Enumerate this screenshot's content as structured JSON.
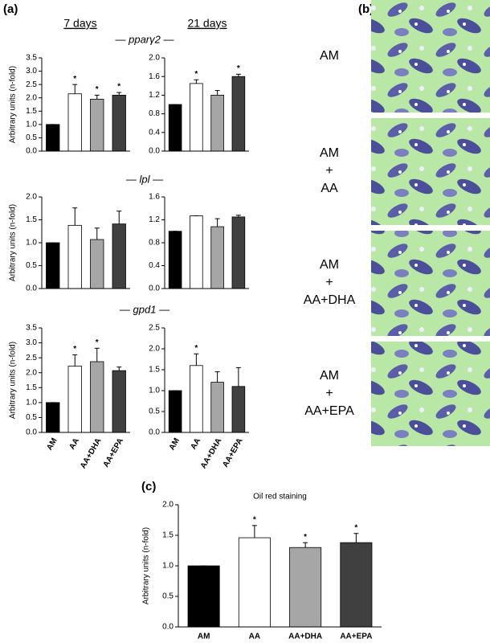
{
  "panels": [
    "(a)",
    "(b)",
    "(c)"
  ],
  "columns": [
    "7 days",
    "21 days"
  ],
  "genes": [
    "— pparγ2 —",
    "— lpl —",
    "— gpd1 —"
  ],
  "images": [
    {
      "lines": [
        "AM"
      ]
    },
    {
      "lines": [
        "AM",
        "+",
        "AA"
      ]
    },
    {
      "lines": [
        "AM",
        "+",
        "AA+DHA"
      ]
    },
    {
      "lines": [
        "AM",
        "+",
        "AA+EPA"
      ]
    }
  ],
  "chart_data": [
    {
      "type": "bar",
      "ylabel": "Arbitrary units (n-fold)",
      "categories": [
        null,
        null,
        null,
        null
      ],
      "values": [
        1.0,
        2.15,
        1.95,
        2.1
      ],
      "errors": [
        0,
        0.35,
        0.15,
        0.1
      ],
      "significance": [
        null,
        "*",
        "*",
        "*"
      ],
      "colors": [
        "#000000",
        "#ffffff",
        "#a6a6a6",
        "#404040"
      ],
      "ylim": [
        0,
        3.5
      ],
      "yticks": [
        {
          "value": 0,
          "label": "0.0"
        },
        {
          "value": 0.5,
          "label": "0.5"
        },
        {
          "value": 1,
          "label": "1.0"
        },
        {
          "value": 1.5,
          "label": "1.5"
        },
        {
          "value": 2,
          "label": "2.0"
        },
        {
          "value": 2.5,
          "label": "2.5"
        },
        {
          "value": 3,
          "label": "3.0"
        },
        {
          "value": 3.5,
          "label": "3.5"
        }
      ]
    },
    {
      "type": "bar",
      "categories": [
        null,
        null,
        null,
        null
      ],
      "values": [
        1.0,
        1.45,
        1.2,
        1.6
      ],
      "errors": [
        0,
        0.08,
        0.1,
        0.05
      ],
      "significance": [
        null,
        "*",
        null,
        "*"
      ],
      "colors": [
        "#000000",
        "#ffffff",
        "#a6a6a6",
        "#404040"
      ],
      "ylim": [
        0,
        2.0
      ],
      "yticks": [
        {
          "value": 0,
          "label": "0.0"
        },
        0.4,
        0.8,
        1.2,
        1.6,
        {
          "value": 2,
          "label": "2.0"
        }
      ]
    },
    {
      "type": "bar",
      "ylabel": "Arbitrary units (n-fold)",
      "categories": [
        null,
        null,
        null,
        null
      ],
      "values": [
        1.0,
        1.38,
        1.07,
        1.41
      ],
      "errors": [
        0,
        0.38,
        0.25,
        0.28
      ],
      "significance": [
        null,
        null,
        null,
        null
      ],
      "colors": [
        "#000000",
        "#ffffff",
        "#a6a6a6",
        "#404040"
      ],
      "ylim": [
        0,
        2.0
      ],
      "yticks": [
        {
          "value": 0,
          "label": "0.0"
        },
        0.5,
        {
          "value": 1,
          "label": "1.0"
        },
        1.5,
        {
          "value": 2,
          "label": "2.0"
        }
      ]
    },
    {
      "type": "bar",
      "categories": [
        null,
        null,
        null,
        null
      ],
      "values": [
        1.0,
        1.27,
        1.08,
        1.25
      ],
      "errors": [
        0,
        0,
        0.14,
        0.03
      ],
      "significance": [
        null,
        null,
        null,
        null
      ],
      "colors": [
        "#000000",
        "#ffffff",
        "#a6a6a6",
        "#404040"
      ],
      "ylim": [
        0,
        1.6
      ],
      "yticks": [
        {
          "value": 0,
          "label": "0.0"
        },
        0.4,
        0.8,
        1.2,
        1.6
      ]
    },
    {
      "type": "bar",
      "ylabel": "Arbitrary units (n-fold)",
      "categories": [
        "AM",
        "AA",
        "AA+DHA",
        "AA+EPA"
      ],
      "values": [
        1.0,
        2.22,
        2.37,
        2.07
      ],
      "errors": [
        0,
        0.38,
        0.45,
        0.12
      ],
      "significance": [
        null,
        "*",
        "*",
        null
      ],
      "colors": [
        "#000000",
        "#ffffff",
        "#a6a6a6",
        "#404040"
      ],
      "ylim": [
        0,
        3.5
      ],
      "yticks": [
        {
          "value": 0,
          "label": "0.0"
        },
        0.5,
        {
          "value": 1,
          "label": "1.0"
        },
        1.5,
        {
          "value": 2,
          "label": "2.0"
        },
        2.5,
        {
          "value": 3,
          "label": "3.0"
        },
        3.5
      ]
    },
    {
      "type": "bar",
      "categories": [
        "AM",
        "AA",
        "AA+DHA",
        "AA+EPA"
      ],
      "values": [
        1.0,
        1.6,
        1.2,
        1.1
      ],
      "errors": [
        0,
        0.28,
        0.25,
        0.45
      ],
      "significance": [
        null,
        "*",
        null,
        null
      ],
      "colors": [
        "#000000",
        "#ffffff",
        "#a6a6a6",
        "#404040"
      ],
      "ylim": [
        0,
        2.5
      ],
      "yticks": [
        {
          "value": 0,
          "label": "0.0"
        },
        0.5,
        {
          "value": 1,
          "label": "1.0"
        },
        1.5,
        {
          "value": 2,
          "label": "2.0"
        },
        2.5
      ]
    },
    {
      "type": "bar",
      "title": "Oil red staining",
      "ylabel": "Arbitrary units (n-fold)",
      "categories": [
        "AM",
        "AA",
        "AA+DHA",
        "AA+EPA"
      ],
      "values": [
        1.0,
        1.46,
        1.3,
        1.38
      ],
      "errors": [
        0,
        0.2,
        0.08,
        0.15
      ],
      "significance": [
        null,
        "*",
        "*",
        "*"
      ],
      "colors": [
        "#000000",
        "#ffffff",
        "#a6a6a6",
        "#404040"
      ],
      "ylim": [
        0,
        2.0
      ],
      "yticks": [
        {
          "value": 0,
          "label": "0.0"
        },
        0.5,
        {
          "value": 1,
          "label": "1.0"
        },
        1.5,
        {
          "value": 2,
          "label": "2.0"
        }
      ]
    }
  ]
}
